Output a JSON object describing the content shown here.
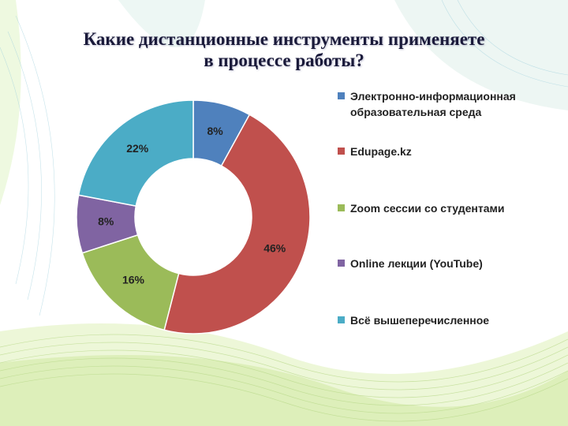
{
  "title_lines": [
    "Какие дистанционные инструменты применяете",
    "в процессе работы?"
  ],
  "chart_data": {
    "type": "pie",
    "donut": true,
    "categories": [
      "Электронно-информационная образовательная среда",
      "Edupage.kz",
      "Zoom сессии со студентами",
      "Online лекции (YouTube)",
      "Всё вышеперечисленное"
    ],
    "values": [
      8,
      46,
      16,
      8,
      22
    ],
    "value_labels": [
      "8%",
      "46%",
      "16%",
      "8%",
      "22%"
    ],
    "colors": [
      "#4f81bd",
      "#c0504d",
      "#9bbb59",
      "#8064a2",
      "#4bacc6"
    ],
    "legend_position": "right"
  }
}
